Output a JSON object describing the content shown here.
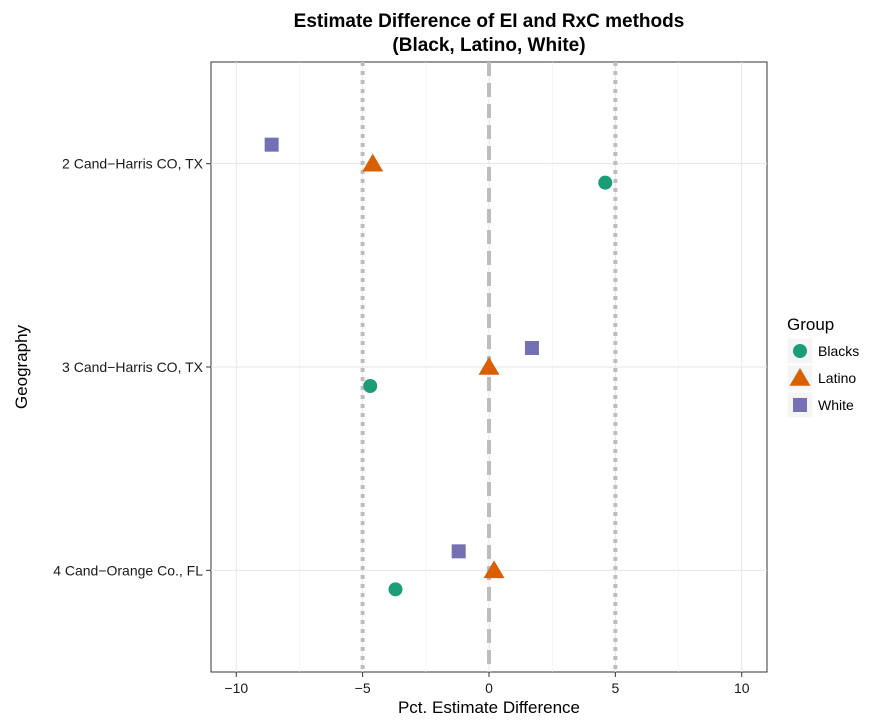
{
  "chart_data": {
    "type": "scatter",
    "title": [
      "Estimate Difference of EI and RxC methods",
      "(Black, Latino, White)"
    ],
    "xlabel": "Pct. Estimate Difference",
    "ylabel": "Geography",
    "xlim": [
      -11,
      11
    ],
    "x_ticks": [
      -10,
      -5,
      0,
      5,
      10
    ],
    "x_tick_labels": [
      "−10",
      "−5",
      "0",
      "5",
      "10"
    ],
    "categories": [
      "2 Cand−Harris CO, TX",
      "3 Cand−Harris CO, TX",
      "4 Cand−Orange Co., FL"
    ],
    "reference_lines": [
      {
        "x": -5,
        "style": "dotted"
      },
      {
        "x": 0,
        "style": "dashed"
      },
      {
        "x": 5,
        "style": "dotted"
      }
    ],
    "grid": true,
    "legend": {
      "title": "Group",
      "position": "right"
    },
    "series": [
      {
        "name": "Blacks",
        "shape": "circle",
        "color": "#1b9e77",
        "offset": -1,
        "values": [
          4.6,
          -4.7,
          -3.7
        ]
      },
      {
        "name": "Latino",
        "shape": "triangle",
        "color": "#d95f02",
        "offset": 0,
        "values": [
          -4.6,
          0.0,
          0.2
        ]
      },
      {
        "name": "White",
        "shape": "square",
        "color": "#7570b3",
        "offset": 1,
        "values": [
          -8.6,
          1.7,
          -1.2
        ]
      }
    ]
  }
}
